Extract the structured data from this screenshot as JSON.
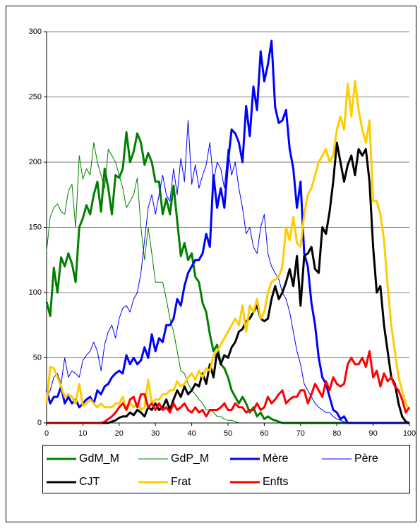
{
  "chart_data": {
    "type": "line",
    "x": [
      0,
      1,
      2,
      3,
      4,
      5,
      6,
      7,
      8,
      9,
      10,
      11,
      12,
      13,
      14,
      15,
      16,
      17,
      18,
      19,
      20,
      21,
      22,
      23,
      24,
      25,
      26,
      27,
      28,
      29,
      30,
      31,
      32,
      33,
      34,
      35,
      36,
      37,
      38,
      39,
      40,
      41,
      42,
      43,
      44,
      45,
      46,
      47,
      48,
      49,
      50,
      51,
      52,
      53,
      54,
      55,
      56,
      57,
      58,
      59,
      60,
      61,
      62,
      63,
      64,
      65,
      66,
      67,
      68,
      69,
      70,
      71,
      72,
      73,
      74,
      75,
      76,
      77,
      78,
      79,
      80,
      81,
      82,
      83,
      84,
      85,
      86,
      87,
      88,
      89,
      90,
      91,
      92,
      93,
      94,
      95,
      96,
      97,
      98,
      99,
      100
    ],
    "xlim": [
      0,
      100
    ],
    "xticks": [
      0,
      10,
      20,
      30,
      40,
      50,
      60,
      70,
      80,
      90,
      100
    ],
    "ylim": [
      0,
      300
    ],
    "yticks": [
      0,
      50,
      100,
      150,
      200,
      250,
      300
    ],
    "grid": true,
    "series": [
      {
        "name": "GdM_M",
        "color": "#008000",
        "values": [
          93,
          82,
          119,
          100,
          127,
          120,
          130,
          122,
          108,
          150,
          157,
          167,
          160,
          175,
          185,
          162,
          195,
          180,
          160,
          190,
          188,
          195,
          223,
          200,
          208,
          222,
          215,
          198,
          207,
          200,
          185,
          185,
          160,
          172,
          160,
          182,
          155,
          128,
          138,
          125,
          130,
          112,
          108,
          92,
          85,
          68,
          55,
          60,
          45,
          42,
          35,
          25,
          20,
          15,
          20,
          15,
          8,
          12,
          5,
          8,
          3,
          5,
          3,
          2,
          1,
          0,
          0,
          0,
          0,
          0,
          0,
          0,
          0,
          0,
          0,
          0,
          0,
          0,
          0,
          0,
          0,
          0,
          0,
          0,
          0,
          0,
          0,
          0,
          0,
          0,
          0,
          0,
          0,
          0,
          0,
          0,
          0,
          0,
          0,
          0,
          0
        ]
      },
      {
        "name": "GdP_M",
        "color": "#008000",
        "values": [
          132,
          158,
          165,
          168,
          162,
          160,
          178,
          183,
          150,
          205,
          187,
          195,
          190,
          215,
          200,
          190,
          180,
          210,
          205,
          200,
          190,
          180,
          165,
          170,
          175,
          188,
          150,
          125,
          150,
          130,
          108,
          108,
          108,
          95,
          80,
          70,
          55,
          40,
          38,
          30,
          25,
          22,
          18,
          15,
          10,
          10,
          8,
          5,
          5,
          3,
          2,
          2,
          1,
          0,
          0,
          0,
          0,
          0,
          0,
          0,
          0,
          0,
          0,
          0,
          0,
          0,
          0,
          0,
          0,
          0,
          0,
          0,
          0,
          0,
          0,
          0,
          0,
          0,
          0,
          0,
          0,
          0,
          0,
          0,
          0,
          0,
          0,
          0,
          0,
          0,
          0,
          0,
          0,
          0,
          0,
          0,
          0,
          0,
          0,
          0,
          0
        ]
      },
      {
        "name": "Mère",
        "color": "#0000ff",
        "values": [
          25,
          15,
          20,
          20,
          28,
          15,
          20,
          15,
          18,
          12,
          15,
          18,
          20,
          15,
          25,
          22,
          28,
          30,
          35,
          38,
          40,
          38,
          52,
          45,
          50,
          45,
          48,
          58,
          50,
          68,
          55,
          65,
          62,
          75,
          75,
          80,
          95,
          90,
          105,
          115,
          120,
          125,
          125,
          130,
          145,
          135,
          190,
          165,
          180,
          165,
          200,
          225,
          222,
          215,
          200,
          243,
          220,
          258,
          240,
          285,
          262,
          275,
          293,
          242,
          230,
          232,
          240,
          210,
          195,
          165,
          185,
          130,
          120,
          92,
          75,
          50,
          35,
          30,
          20,
          10,
          8,
          3,
          5,
          0,
          0,
          0,
          0,
          0,
          0,
          0,
          0,
          0,
          0,
          0,
          0,
          0,
          0,
          0,
          0,
          0,
          0
        ]
      },
      {
        "name": "Père",
        "color": "#0000ff",
        "values": [
          20,
          25,
          35,
          38,
          30,
          50,
          35,
          40,
          38,
          35,
          48,
          52,
          55,
          62,
          55,
          40,
          60,
          70,
          75,
          65,
          80,
          88,
          90,
          85,
          95,
          100,
          115,
          140,
          165,
          175,
          160,
          175,
          190,
          175,
          170,
          195,
          175,
          203,
          185,
          232,
          183,
          198,
          180,
          190,
          198,
          215,
          185,
          200,
          195,
          180,
          210,
          190,
          200,
          180,
          165,
          145,
          150,
          135,
          130,
          150,
          160,
          130,
          120,
          115,
          110,
          100,
          95,
          85,
          70,
          55,
          45,
          30,
          25,
          20,
          15,
          12,
          10,
          8,
          8,
          5,
          3,
          2,
          1,
          0,
          0,
          0,
          0,
          0,
          0,
          0,
          0,
          0,
          0,
          0,
          0,
          0,
          0,
          0,
          0,
          0,
          0
        ]
      },
      {
        "name": "CJT",
        "color": "#000000",
        "values": [
          0,
          0,
          0,
          0,
          0,
          0,
          0,
          0,
          0,
          0,
          0,
          0,
          0,
          0,
          0,
          0,
          0,
          0,
          1,
          2,
          4,
          5,
          5,
          8,
          6,
          10,
          8,
          5,
          12,
          10,
          15,
          10,
          12,
          18,
          10,
          18,
          25,
          20,
          28,
          22,
          25,
          30,
          28,
          38,
          30,
          45,
          35,
          55,
          45,
          52,
          50,
          58,
          62,
          70,
          72,
          78,
          80,
          85,
          90,
          80,
          78,
          80,
          95,
          105,
          95,
          100,
          108,
          118,
          105,
          128,
          90,
          128,
          130,
          135,
          118,
          115,
          150,
          145,
          162,
          185,
          215,
          200,
          185,
          198,
          205,
          190,
          210,
          205,
          210,
          185,
          135,
          100,
          105,
          75,
          55,
          35,
          30,
          15,
          5,
          1,
          0
        ]
      },
      {
        "name": "Frat",
        "color": "#ffcc00",
        "values": [
          15,
          43,
          42,
          35,
          28,
          20,
          22,
          20,
          15,
          30,
          13,
          15,
          18,
          15,
          12,
          15,
          12,
          12,
          12,
          15,
          15,
          20,
          10,
          15,
          12,
          15,
          10,
          12,
          33,
          15,
          18,
          18,
          22,
          22,
          25,
          25,
          32,
          28,
          30,
          35,
          38,
          33,
          40,
          35,
          42,
          40,
          52,
          55,
          60,
          65,
          70,
          75,
          80,
          75,
          90,
          70,
          90,
          85,
          95,
          80,
          85,
          100,
          108,
          110,
          112,
          120,
          150,
          140,
          158,
          138,
          135,
          160,
          175,
          180,
          190,
          200,
          205,
          210,
          200,
          205,
          225,
          235,
          225,
          260,
          235,
          262,
          240,
          225,
          215,
          232,
          170,
          170,
          160,
          140,
          105,
          75,
          55,
          35,
          25,
          15,
          10
        ]
      },
      {
        "name": "Enfts",
        "color": "#ff0000",
        "values": [
          0,
          0,
          0,
          0,
          0,
          0,
          0,
          0,
          0,
          0,
          0,
          0,
          0,
          0,
          0,
          0,
          1,
          3,
          5,
          8,
          12,
          15,
          10,
          18,
          20,
          12,
          22,
          22,
          12,
          15,
          10,
          15,
          10,
          12,
          8,
          15,
          10,
          12,
          15,
          10,
          8,
          12,
          8,
          10,
          5,
          10,
          10,
          10,
          12,
          15,
          10,
          10,
          15,
          12,
          12,
          8,
          10,
          10,
          15,
          10,
          12,
          20,
          15,
          18,
          22,
          25,
          15,
          18,
          20,
          20,
          25,
          25,
          15,
          22,
          30,
          25,
          20,
          32,
          25,
          35,
          30,
          28,
          30,
          45,
          50,
          45,
          45,
          50,
          43,
          55,
          35,
          40,
          28,
          38,
          32,
          35,
          28,
          25,
          18,
          8,
          12
        ]
      }
    ]
  }
}
